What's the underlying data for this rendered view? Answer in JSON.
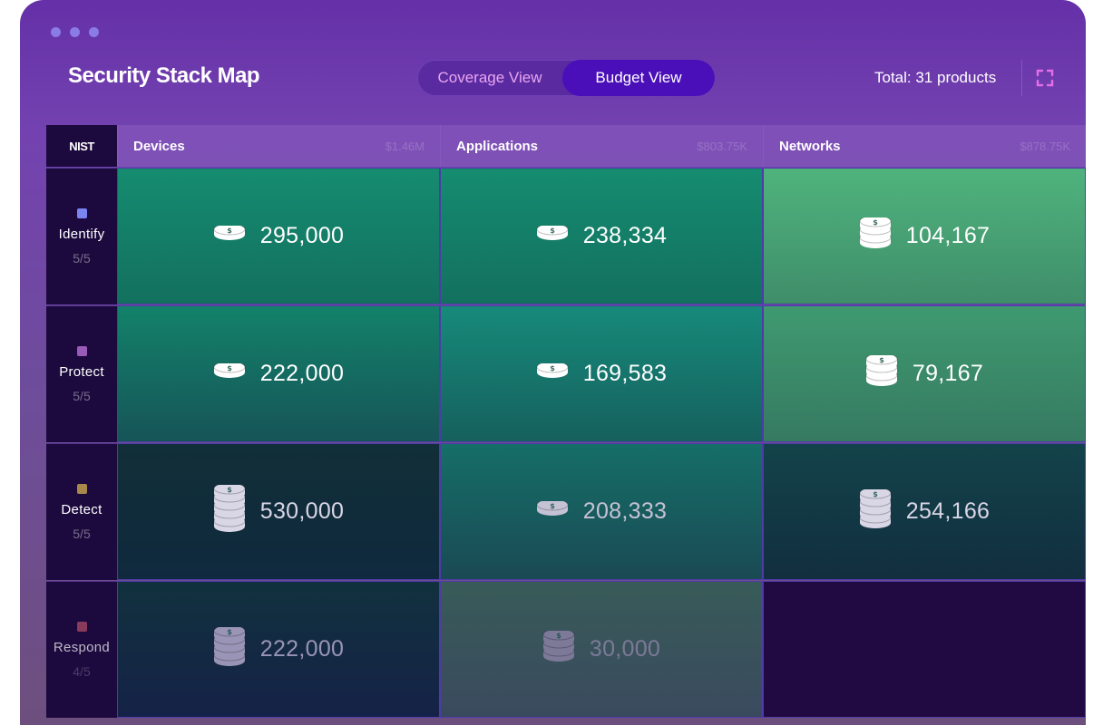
{
  "window": {
    "title": "Security Stack Map"
  },
  "toggle": {
    "coverage_label": "Coverage View",
    "budget_label": "Budget View",
    "active": "Budget View"
  },
  "total_label": "Total: 31 products",
  "icons": {
    "expand": "expand-icon",
    "coin": "coin-stack-icon"
  },
  "colors": {
    "window_top": "#6530a8",
    "toggle_active": "#4a0fb8",
    "row_header": "#1c0a3e",
    "identify": "#7b85f0",
    "protect": "#9a5bb8",
    "detect": "#a8884a",
    "respond": "#8a3a5a"
  },
  "grid": {
    "corner_label": "NIST",
    "columns": [
      {
        "name": "Devices",
        "budget": "$1.46M"
      },
      {
        "name": "Applications",
        "budget": "$803.75K"
      },
      {
        "name": "Networks",
        "budget": "$878.75K"
      }
    ],
    "rows": [
      {
        "label": "Identify",
        "score": "5/5",
        "square_color": "#7b85f0",
        "cells": [
          {
            "value": "295,000",
            "stack": 1
          },
          {
            "value": "238,334",
            "stack": 1
          },
          {
            "value": "104,167",
            "stack": 3
          }
        ]
      },
      {
        "label": "Protect",
        "score": "5/5",
        "square_color": "#9a5bb8",
        "cells": [
          {
            "value": "222,000",
            "stack": 1
          },
          {
            "value": "169,583",
            "stack": 1
          },
          {
            "value": "79,167",
            "stack": 3
          }
        ]
      },
      {
        "label": "Detect",
        "score": "5/5",
        "square_color": "#a8884a",
        "cells": [
          {
            "value": "530,000",
            "stack": 5
          },
          {
            "value": "208,333",
            "stack": 1
          },
          {
            "value": "254,166",
            "stack": 4
          }
        ]
      },
      {
        "label": "Respond",
        "score": "4/5",
        "square_color": "#8a3a5a",
        "cells": [
          {
            "value": "222,000",
            "stack": 4
          },
          {
            "value": "30,000",
            "stack": 3
          },
          {
            "value": "",
            "stack": 0
          }
        ]
      }
    ]
  }
}
